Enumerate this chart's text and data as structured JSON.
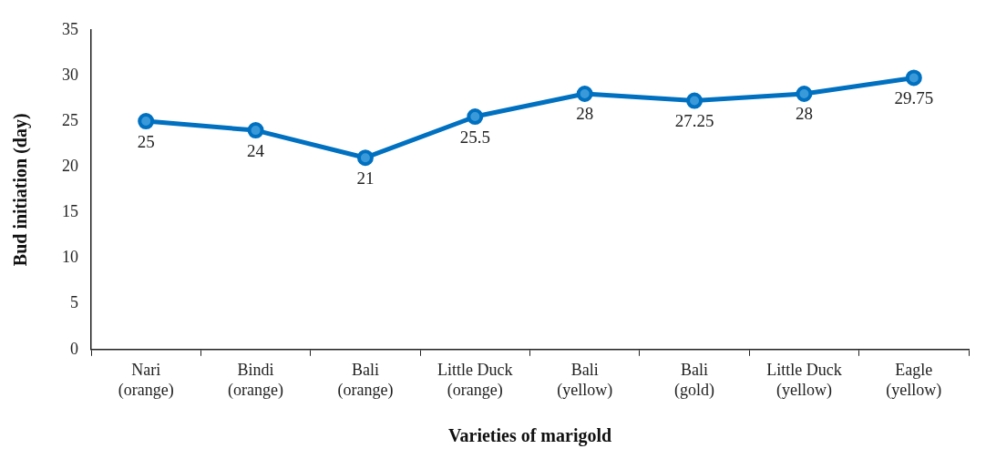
{
  "chart_data": {
    "type": "line",
    "xlabel": "Varieties of marigold",
    "ylabel": "Bud initiation (day)",
    "categories": [
      "Nari\n(orange)",
      "Bindi\n(orange)",
      "Bali\n(orange)",
      "Little Duck\n(orange)",
      "Bali\n(yellow)",
      "Bali\n(gold)",
      "Little Duck\n(yellow)",
      "Eagle\n(yellow)"
    ],
    "series": [
      {
        "color": "#0070c0",
        "values": [
          25,
          24,
          21,
          25.5,
          28,
          27.25,
          28,
          29.75
        ]
      }
    ],
    "ylim": [
      0,
      35
    ],
    "yticks": [
      0,
      5,
      10,
      15,
      20,
      25,
      30,
      35
    ],
    "marker": "circle",
    "line_style": "solid",
    "data_labels": true,
    "legend": false
  }
}
